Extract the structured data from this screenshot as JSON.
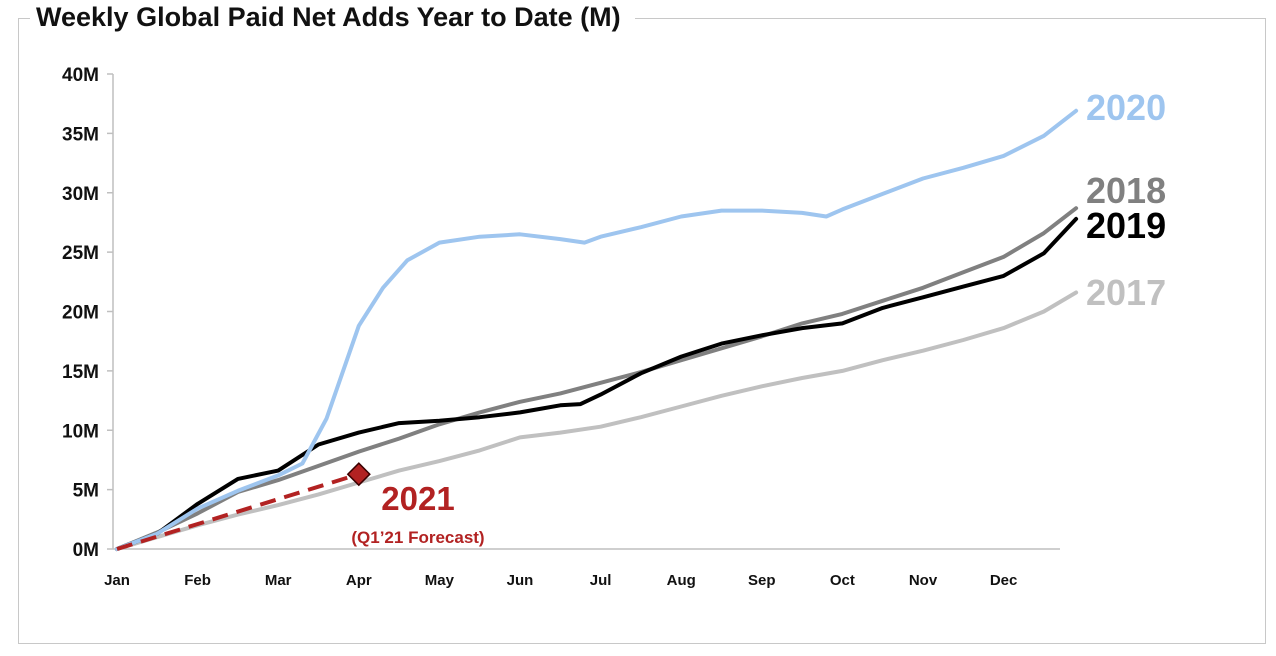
{
  "chart_data": {
    "type": "line",
    "title": "Weekly Global Paid Net Adds Year to Date (M)",
    "xlabel": "",
    "ylabel": "",
    "ylim": [
      0,
      40
    ],
    "xlim": [
      0,
      11.9
    ],
    "grid": false,
    "y_ticks": [
      "0M",
      "5M",
      "10M",
      "15M",
      "20M",
      "25M",
      "30M",
      "35M",
      "40M"
    ],
    "x_ticks": [
      "Jan",
      "Feb",
      "Mar",
      "Apr",
      "May",
      "Jun",
      "Jul",
      "Aug",
      "Sep",
      "Oct",
      "Nov",
      "Dec"
    ],
    "series": [
      {
        "name": "2017",
        "color": "#c0c0c0",
        "x": [
          0,
          0.5,
          1,
          1.5,
          2,
          2.5,
          3,
          3.5,
          4,
          4.5,
          5,
          5.5,
          6,
          6.5,
          7,
          7.5,
          8,
          8.5,
          9,
          9.5,
          10,
          10.5,
          11,
          11.5,
          11.9
        ],
        "y": [
          0,
          1.0,
          2.0,
          2.9,
          3.7,
          4.6,
          5.6,
          6.6,
          7.4,
          8.3,
          9.4,
          9.8,
          10.3,
          11.1,
          12.0,
          12.9,
          13.7,
          14.4,
          15.0,
          15.9,
          16.7,
          17.6,
          18.6,
          20.0,
          21.6
        ]
      },
      {
        "name": "2018",
        "color": "#808080",
        "x": [
          0,
          0.5,
          1,
          1.5,
          2,
          2.5,
          3,
          3.5,
          4,
          4.5,
          5,
          5.5,
          6,
          6.5,
          7,
          7.5,
          8,
          8.5,
          9,
          9.5,
          10,
          10.5,
          11,
          11.5,
          11.9
        ],
        "y": [
          0,
          1.4,
          3.0,
          4.8,
          5.8,
          7.0,
          8.2,
          9.3,
          10.5,
          11.5,
          12.4,
          13.1,
          14.0,
          14.9,
          15.9,
          16.9,
          17.9,
          19.0,
          19.8,
          20.9,
          22.0,
          23.3,
          24.6,
          26.6,
          28.7
        ]
      },
      {
        "name": "2019",
        "color": "#000000",
        "x": [
          0,
          0.5,
          1,
          1.5,
          2,
          2.5,
          3,
          3.5,
          4,
          4.5,
          5,
          5.25,
          5.5,
          5.75,
          6,
          6.5,
          7,
          7.5,
          8,
          8.5,
          9,
          9.5,
          10,
          10.5,
          11,
          11.5,
          11.9
        ],
        "y": [
          0,
          1.3,
          3.8,
          5.9,
          6.6,
          8.8,
          9.8,
          10.6,
          10.8,
          11.1,
          11.5,
          11.8,
          12.1,
          12.2,
          13.0,
          14.8,
          16.2,
          17.3,
          18.0,
          18.6,
          19.0,
          20.3,
          21.2,
          22.1,
          23.0,
          24.9,
          27.8
        ]
      },
      {
        "name": "2020",
        "color": "#9ec5ef",
        "x": [
          0,
          0.5,
          1,
          1.5,
          2,
          2.3,
          2.6,
          3,
          3.3,
          3.6,
          4,
          4.5,
          5,
          5.5,
          5.8,
          6,
          6.5,
          7,
          7.5,
          8,
          8.5,
          8.8,
          9,
          9.5,
          10,
          10.5,
          11,
          11.5,
          11.9
        ],
        "y": [
          0,
          1.3,
          3.4,
          4.9,
          6.2,
          7.2,
          11.0,
          18.8,
          22.0,
          24.3,
          25.8,
          26.3,
          26.5,
          26.1,
          25.8,
          26.3,
          27.1,
          28.0,
          28.5,
          28.5,
          28.3,
          28.0,
          28.6,
          29.9,
          31.2,
          32.1,
          33.1,
          34.8,
          36.9
        ]
      }
    ],
    "forecast": {
      "name": "2021",
      "sublabel": "(Q1’21 Forecast)",
      "color": "#b22222",
      "x": [
        0,
        3
      ],
      "y": [
        0,
        6.3
      ],
      "marker": "diamond"
    }
  }
}
